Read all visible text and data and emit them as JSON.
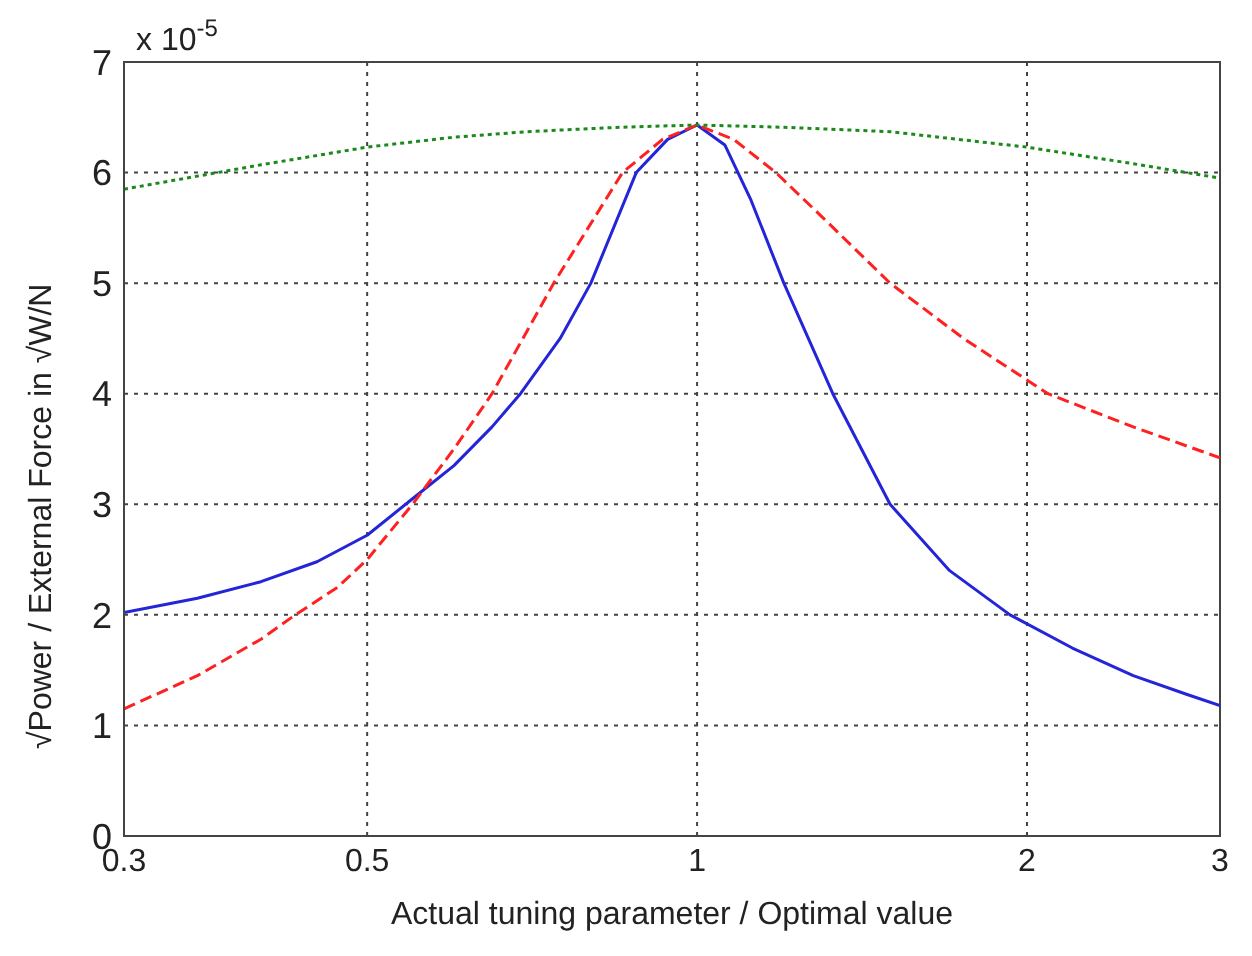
{
  "chart_data": {
    "type": "line",
    "xlabel": "Actual tuning parameter / Optimal value",
    "ylabel": "√Power / External Force in √W/N",
    "annotations": [
      "x 10$^{-5}$"
    ],
    "log": "x",
    "xlim": [
      0.3,
      3
    ],
    "xticks": [
      0.3,
      0.5,
      1,
      2,
      3
    ],
    "ylim": [
      0,
      7
    ],
    "yticks": [
      0,
      1,
      2,
      3,
      4,
      5,
      6,
      7
    ],
    "grid": true,
    "marker": "none",
    "series": [
      {
        "color": "#2424d8",
        "line_style": "solid",
        "x": [
          0.3,
          0.35,
          0.4,
          0.45,
          0.5,
          0.55,
          0.6,
          0.65,
          0.69,
          0.75,
          0.8,
          0.88,
          0.94,
          1,
          1.06,
          1.12,
          1.2,
          1.33,
          1.5,
          1.7,
          1.93,
          2.2,
          2.5,
          2.8,
          3
        ],
        "values": [
          2.02,
          2.15,
          2.3,
          2.48,
          2.72,
          3.05,
          3.35,
          3.7,
          4,
          4.5,
          5,
          6,
          6.3,
          6.43,
          6.25,
          5.75,
          5,
          4,
          3,
          2.4,
          2,
          1.7,
          1.45,
          1.28,
          1.18
        ]
      },
      {
        "color": "#ff2020",
        "line_style": "dashed",
        "x": [
          0.3,
          0.35,
          0.4,
          0.43,
          0.47,
          0.5,
          0.55,
          0.6,
          0.65,
          0.74,
          0.855,
          0.93,
          1,
          1.08,
          1.18,
          1.3,
          1.5,
          1.75,
          2.09,
          2.5,
          3
        ],
        "values": [
          1.15,
          1.45,
          1.78,
          2,
          2.25,
          2.5,
          3,
          3.5,
          4,
          5,
          6,
          6.3,
          6.43,
          6.3,
          6,
          5.6,
          5,
          4.5,
          4,
          3.7,
          3.42
        ]
      },
      {
        "color": "#1a8a1a",
        "line_style": "dotted",
        "x": [
          0.3,
          0.4,
          0.5,
          0.6,
          0.7,
          0.85,
          1,
          1.2,
          1.5,
          2,
          2.5,
          3
        ],
        "values": [
          5.85,
          6.07,
          6.23,
          6.32,
          6.37,
          6.41,
          6.43,
          6.41,
          6.37,
          6.23,
          6.08,
          5.95
        ]
      }
    ]
  }
}
